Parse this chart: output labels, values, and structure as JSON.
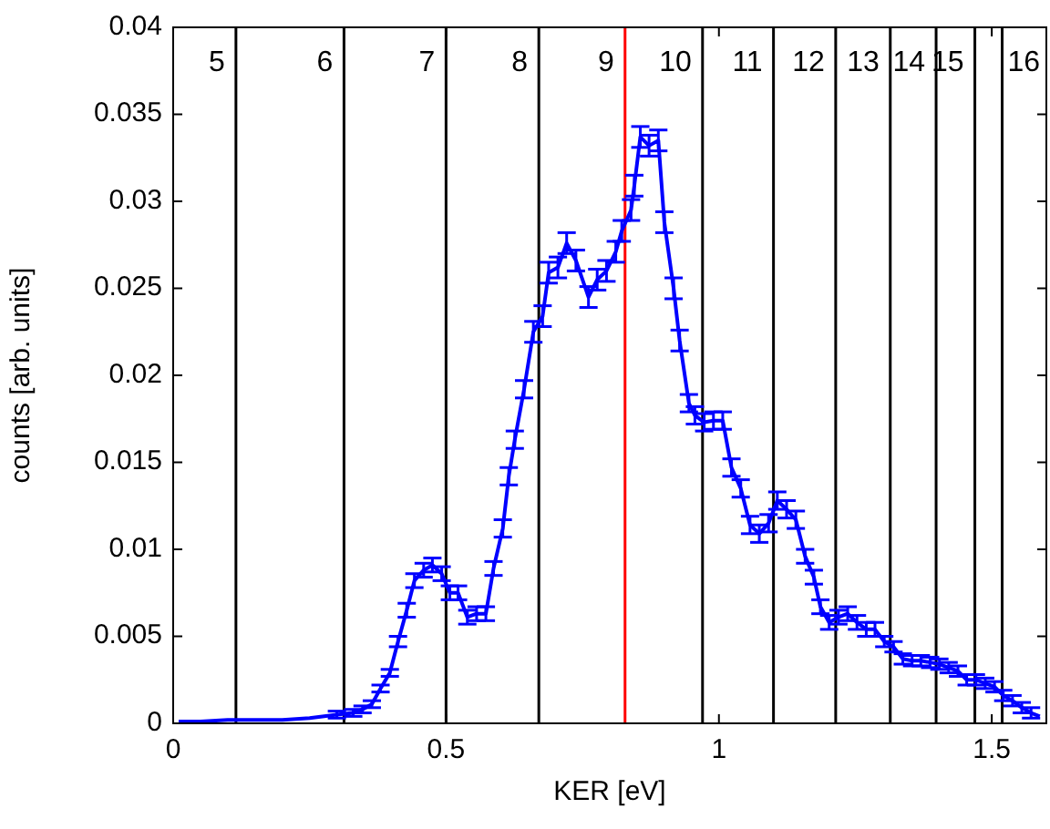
{
  "chart_data": {
    "type": "line",
    "xlabel": "KER [eV]",
    "ylabel": "counts [arb. units]",
    "xlim": [
      0,
      1.6
    ],
    "xticks": [
      0,
      0.5,
      1,
      1.5
    ],
    "ylim": [
      0,
      0.04
    ],
    "yticks": [
      0,
      0.005,
      0.01,
      0.015,
      0.02,
      0.025,
      0.03,
      0.035,
      0.04
    ],
    "grid": false,
    "marker": "none",
    "line_style": "solid",
    "series": [
      {
        "color": "#0000ff",
        "x": [
          0.01,
          0.05,
          0.1,
          0.15,
          0.2,
          0.25,
          0.3,
          0.33,
          0.347,
          0.364,
          0.38,
          0.397,
          0.412,
          0.428,
          0.442,
          0.459,
          0.475,
          0.492,
          0.507,
          0.522,
          0.539,
          0.556,
          0.573,
          0.587,
          0.604,
          0.615,
          0.626,
          0.643,
          0.66,
          0.677,
          0.688,
          0.705,
          0.721,
          0.738,
          0.761,
          0.777,
          0.794,
          0.811,
          0.822,
          0.839,
          0.845,
          0.856,
          0.872,
          0.889,
          0.9,
          0.917,
          0.928,
          0.945,
          0.956,
          0.973,
          0.99,
          1.007,
          1.023,
          1.04,
          1.057,
          1.074,
          1.091,
          1.107,
          1.124,
          1.141,
          1.158,
          1.174,
          1.186,
          1.202,
          1.219,
          1.236,
          1.253,
          1.27,
          1.286,
          1.303,
          1.32,
          1.337,
          1.354,
          1.37,
          1.387,
          1.404,
          1.421,
          1.438,
          1.454,
          1.471,
          1.488,
          1.505,
          1.521,
          1.538,
          1.555,
          1.572,
          1.588
        ],
        "values": [
          0.0001,
          0.0001,
          0.0002,
          0.0002,
          0.0002,
          0.0003,
          0.0005,
          0.0006,
          0.0008,
          0.0011,
          0.002,
          0.0029,
          0.0047,
          0.0065,
          0.0082,
          0.0088,
          0.0091,
          0.0086,
          0.0075,
          0.0075,
          0.0061,
          0.0063,
          0.0063,
          0.0089,
          0.0112,
          0.0142,
          0.0163,
          0.0192,
          0.0225,
          0.0234,
          0.0259,
          0.0262,
          0.0276,
          0.0266,
          0.0245,
          0.0255,
          0.026,
          0.0271,
          0.0283,
          0.0295,
          0.0309,
          0.0337,
          0.0332,
          0.0335,
          0.0288,
          0.025,
          0.022,
          0.0184,
          0.0177,
          0.0173,
          0.0174,
          0.0174,
          0.0147,
          0.0135,
          0.0114,
          0.0109,
          0.0115,
          0.0128,
          0.0123,
          0.0117,
          0.0096,
          0.0084,
          0.0067,
          0.0058,
          0.0061,
          0.0063,
          0.0058,
          0.0054,
          0.0054,
          0.0047,
          0.0044,
          0.0037,
          0.0036,
          0.0036,
          0.0035,
          0.0034,
          0.0032,
          0.003,
          0.0025,
          0.0025,
          0.0023,
          0.0021,
          0.0016,
          0.0013,
          0.0009,
          0.0006,
          0.0004
        ],
        "errors": [
          null,
          null,
          null,
          null,
          null,
          null,
          0.0002,
          0.0002,
          0.0002,
          0.0002,
          0.0002,
          0.0002,
          0.0003,
          0.0004,
          0.0004,
          0.0004,
          0.0004,
          0.0004,
          0.0004,
          0.0004,
          0.0004,
          0.0004,
          0.0004,
          0.0004,
          0.0005,
          0.0005,
          0.0005,
          0.0005,
          0.0006,
          0.0006,
          0.0006,
          0.0006,
          0.0006,
          0.0006,
          0.0006,
          0.0006,
          0.0006,
          0.0006,
          0.0006,
          0.0006,
          0.0006,
          0.0006,
          0.0006,
          0.0006,
          0.0006,
          0.0006,
          0.0006,
          0.0005,
          0.0005,
          0.0005,
          0.0005,
          0.0005,
          0.0005,
          0.0005,
          0.0005,
          0.0005,
          0.0005,
          0.0005,
          0.0005,
          0.0005,
          0.0004,
          0.0004,
          0.0004,
          0.0004,
          0.0004,
          0.0004,
          0.0004,
          0.0004,
          0.0004,
          0.0003,
          0.0003,
          0.0003,
          0.0003,
          0.0003,
          0.0003,
          0.0003,
          0.0003,
          0.0003,
          0.0003,
          0.0003,
          0.0003,
          0.0003,
          0.0003,
          0.0003,
          0.0003,
          0.0003,
          null
        ]
      }
    ],
    "ref_lines": [
      {
        "axis": "x",
        "value": 0.115,
        "color": "#000000"
      },
      {
        "axis": "x",
        "value": 0.313,
        "color": "#000000"
      },
      {
        "axis": "x",
        "value": 0.5,
        "color": "#000000"
      },
      {
        "axis": "x",
        "value": 0.67,
        "color": "#000000"
      },
      {
        "axis": "x",
        "value": 0.828,
        "color": "#ff0000"
      },
      {
        "axis": "x",
        "value": 0.97,
        "color": "#000000"
      },
      {
        "axis": "x",
        "value": 1.1,
        "color": "#000000"
      },
      {
        "axis": "x",
        "value": 1.214,
        "color": "#000000"
      },
      {
        "axis": "x",
        "value": 1.314,
        "color": "#000000"
      },
      {
        "axis": "x",
        "value": 1.398,
        "color": "#000000"
      },
      {
        "axis": "x",
        "value": 1.469,
        "color": "#000000"
      },
      {
        "axis": "x",
        "value": 1.519,
        "color": "#000000"
      }
    ],
    "annotations": [
      "5",
      "6",
      "7",
      "8",
      "9",
      "10",
      "11",
      "12",
      "13",
      "14",
      "15",
      "16"
    ]
  }
}
